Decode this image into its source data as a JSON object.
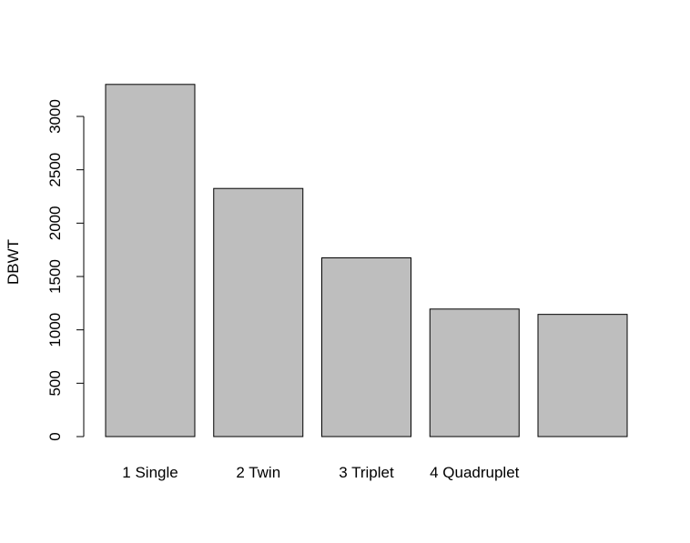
{
  "chart_data": {
    "type": "bar",
    "title": "",
    "xlabel": "",
    "ylabel": "DBWT",
    "categories": [
      "1 Single",
      "2 Twin",
      "3 Triplet",
      "4 Quadruplet",
      ""
    ],
    "values": [
      3300,
      2325,
      1675,
      1195,
      1145
    ],
    "ylim": [
      0,
      3300
    ],
    "yticks": [
      0,
      500,
      1000,
      1500,
      2000,
      2500,
      3000
    ],
    "grid": false,
    "legend": "none",
    "bar_color": "#bebebe",
    "bar_edge_color": "#000000"
  }
}
